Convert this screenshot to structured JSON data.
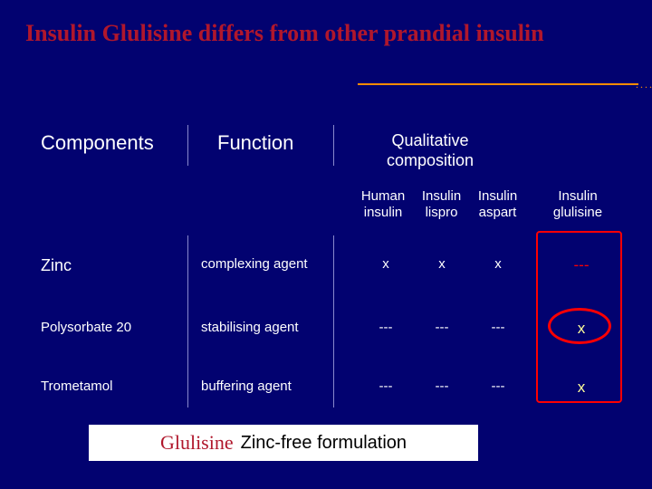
{
  "title": "Insulin Glulisine differs from other prandial  insulin",
  "headers": {
    "components": "Components",
    "function": "Function",
    "qualitative": "Qualitative composition"
  },
  "subheaders": {
    "human": "Human insulin",
    "lispro": "Insulin lispro",
    "aspart": "Insulin aspart",
    "glulisine": "Insulin glulisine"
  },
  "rows": [
    {
      "component": "Zinc",
      "function": "complexing agent",
      "c1": "x",
      "c2": "x",
      "c3": "x",
      "c4": "---",
      "c4_class": "dash",
      "comp_large": true
    },
    {
      "component": "Polysorbate 20",
      "function": "stabilising agent",
      "c1": "---",
      "c2": "---",
      "c3": "---",
      "c4": "x",
      "c4_class": "mark",
      "comp_large": false
    },
    {
      "component": "Trometamol",
      "function": "buffering agent",
      "c1": "---",
      "c2": "---",
      "c3": "---",
      "c4": "x",
      "c4_class": "mark",
      "comp_large": false
    }
  ],
  "footer": {
    "glu": "Glulisine",
    "text": "Zinc-free formulation"
  },
  "colors": {
    "background": "#020270",
    "title": "#b0172c",
    "accent": "#ff8c00",
    "highlight_border": "#ff0000",
    "text": "#ffffff",
    "footer_bg": "#ffffff",
    "mark": "#ffff99"
  }
}
